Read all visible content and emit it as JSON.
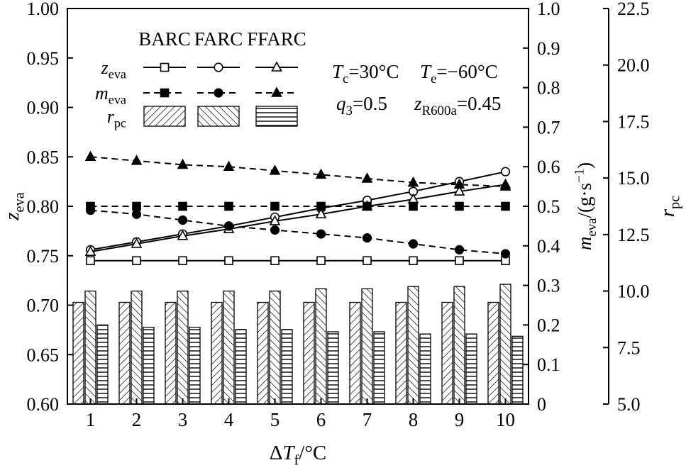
{
  "figure": {
    "background": "#ffffff",
    "ink": "#000000"
  },
  "chart_data": {
    "type": "mixed-line-bar",
    "x": {
      "label_text": "ΔT_f/°C",
      "label_segments": [
        {
          "t": "Δ"
        },
        {
          "t": "T",
          "i": true
        },
        {
          "t": "f",
          "sub": true
        },
        {
          "t": "/°C"
        }
      ],
      "categories": [
        "1",
        "2",
        "3",
        "4",
        "5",
        "6",
        "7",
        "8",
        "9",
        "10"
      ]
    },
    "axes": {
      "left": {
        "label_text": "z_eva",
        "label_segments": [
          {
            "t": "z",
            "i": true
          },
          {
            "t": "eva",
            "sub": true
          }
        ],
        "min": 0.6,
        "max": 1.0,
        "tick_values": [
          0.6,
          0.65,
          0.7,
          0.75,
          0.8,
          0.85,
          0.9,
          0.95,
          1.0
        ],
        "tick_labels": [
          "0.60",
          "0.65",
          "0.70",
          "0.75",
          "0.80",
          "0.85",
          "0.90",
          "0.95",
          "1.00"
        ]
      },
      "right_inner": {
        "label_text": "m_eva/(g·s⁻¹)",
        "label_segments": [
          {
            "t": "m",
            "i": true
          },
          {
            "t": "eva",
            "sub": true
          },
          {
            "t": "/(g·s"
          },
          {
            "t": "−1",
            "sup": true
          },
          {
            "t": ")"
          }
        ],
        "min": 0,
        "max": 1.0,
        "tick_values": [
          0,
          0.1,
          0.2,
          0.3,
          0.4,
          0.5,
          0.6,
          0.7,
          0.8,
          0.9,
          1.0
        ],
        "tick_labels": [
          "0",
          "0.1",
          "0.2",
          "0.3",
          "0.4",
          "0.5",
          "0.6",
          "0.7",
          "0.8",
          "0.9",
          "1.0"
        ]
      },
      "right_outer": {
        "label_text": "r_pc",
        "label_segments": [
          {
            "t": "r",
            "i": true
          },
          {
            "t": "pc",
            "sub": true
          }
        ],
        "min": 5.0,
        "max": 22.5,
        "tick_values": [
          5.0,
          7.5,
          10.0,
          12.5,
          15.0,
          17.5,
          20.0,
          22.5
        ],
        "tick_labels": [
          "5.0",
          "7.5",
          "10.0",
          "12.5",
          "15.0",
          "17.5",
          "20.0",
          "22.5"
        ]
      }
    },
    "line_series": [
      {
        "group": "z_eva",
        "name": "BARC",
        "axis": "left",
        "style": "solid",
        "marker": "square",
        "filled": false,
        "values": [
          0.745,
          0.745,
          0.745,
          0.745,
          0.745,
          0.745,
          0.745,
          0.745,
          0.745,
          0.745
        ]
      },
      {
        "group": "z_eva",
        "name": "FARC",
        "axis": "left",
        "style": "solid",
        "marker": "circle",
        "filled": false,
        "values": [
          0.756,
          0.764,
          0.772,
          0.78,
          0.789,
          0.798,
          0.806,
          0.815,
          0.825,
          0.835
        ]
      },
      {
        "group": "z_eva",
        "name": "FFARC",
        "axis": "left",
        "style": "solid",
        "marker": "triangle",
        "filled": false,
        "values": [
          0.754,
          0.762,
          0.77,
          0.777,
          0.785,
          0.792,
          0.8,
          0.807,
          0.815,
          0.822
        ]
      },
      {
        "group": "m_eva",
        "name": "BARC",
        "axis": "right_inner",
        "style": "dashed",
        "marker": "square",
        "filled": true,
        "values": [
          0.5,
          0.5,
          0.5,
          0.5,
          0.5,
          0.5,
          0.5,
          0.5,
          0.5,
          0.5
        ]
      },
      {
        "group": "m_eva",
        "name": "FARC",
        "axis": "right_inner",
        "style": "dashed",
        "marker": "circle",
        "filled": true,
        "values": [
          0.49,
          0.48,
          0.465,
          0.45,
          0.44,
          0.43,
          0.42,
          0.405,
          0.39,
          0.38
        ]
      },
      {
        "group": "m_eva",
        "name": "FFARC",
        "axis": "right_inner",
        "style": "dashed",
        "marker": "triangle",
        "filled": true,
        "values": [
          0.625,
          0.615,
          0.605,
          0.6,
          0.59,
          0.58,
          0.57,
          0.56,
          0.555,
          0.55
        ]
      }
    ],
    "bar_series": [
      {
        "group": "r_pc",
        "name": "BARC",
        "axis": "right_outer",
        "hatch": "forward-diagonal",
        "values": [
          9.5,
          9.5,
          9.5,
          9.5,
          9.5,
          9.5,
          9.5,
          9.5,
          9.5,
          9.5
        ]
      },
      {
        "group": "r_pc",
        "name": "FARC",
        "axis": "right_outer",
        "hatch": "backward-diagonal",
        "values": [
          10.0,
          10.0,
          10.0,
          10.0,
          10.0,
          10.1,
          10.1,
          10.2,
          10.2,
          10.3
        ]
      },
      {
        "group": "r_pc",
        "name": "FFARC",
        "axis": "right_outer",
        "hatch": "horizontal",
        "values": [
          8.5,
          8.4,
          8.4,
          8.3,
          8.3,
          8.2,
          8.2,
          8.1,
          8.1,
          8.0
        ]
      }
    ],
    "legend": {
      "headers": [
        "BARC",
        "FARC",
        "FFARC"
      ],
      "rows": [
        {
          "label_text": "z_eva",
          "label_segments": [
            {
              "t": "z",
              "i": true
            },
            {
              "t": "eva",
              "sub": true
            }
          ],
          "kind": "line-solid"
        },
        {
          "label_text": "m_eva",
          "label_segments": [
            {
              "t": "m",
              "i": true
            },
            {
              "t": "eva",
              "sub": true
            }
          ],
          "kind": "line-dashed"
        },
        {
          "label_text": "r_pc",
          "label_segments": [
            {
              "t": "r",
              "i": true
            },
            {
              "t": "pc",
              "sub": true
            }
          ],
          "kind": "bar"
        }
      ]
    },
    "annotations": [
      {
        "text": "T_c=30°C",
        "segments": [
          {
            "t": "T",
            "i": true
          },
          {
            "t": "c",
            "sub": true
          },
          {
            "t": "=30°C"
          }
        ]
      },
      {
        "text": "T_e=−60°C",
        "segments": [
          {
            "t": "T",
            "i": true
          },
          {
            "t": "e",
            "sub": true
          },
          {
            "t": "=−60°C"
          }
        ]
      },
      {
        "text": "q_3=0.5",
        "segments": [
          {
            "t": "q",
            "i": true
          },
          {
            "t": "3",
            "sub": true
          },
          {
            "t": "=0.5"
          }
        ]
      },
      {
        "text": "z_R600a=0.45",
        "segments": [
          {
            "t": "z",
            "i": true
          },
          {
            "t": "R600a",
            "sub": true
          },
          {
            "t": "=0.45"
          }
        ]
      }
    ]
  }
}
